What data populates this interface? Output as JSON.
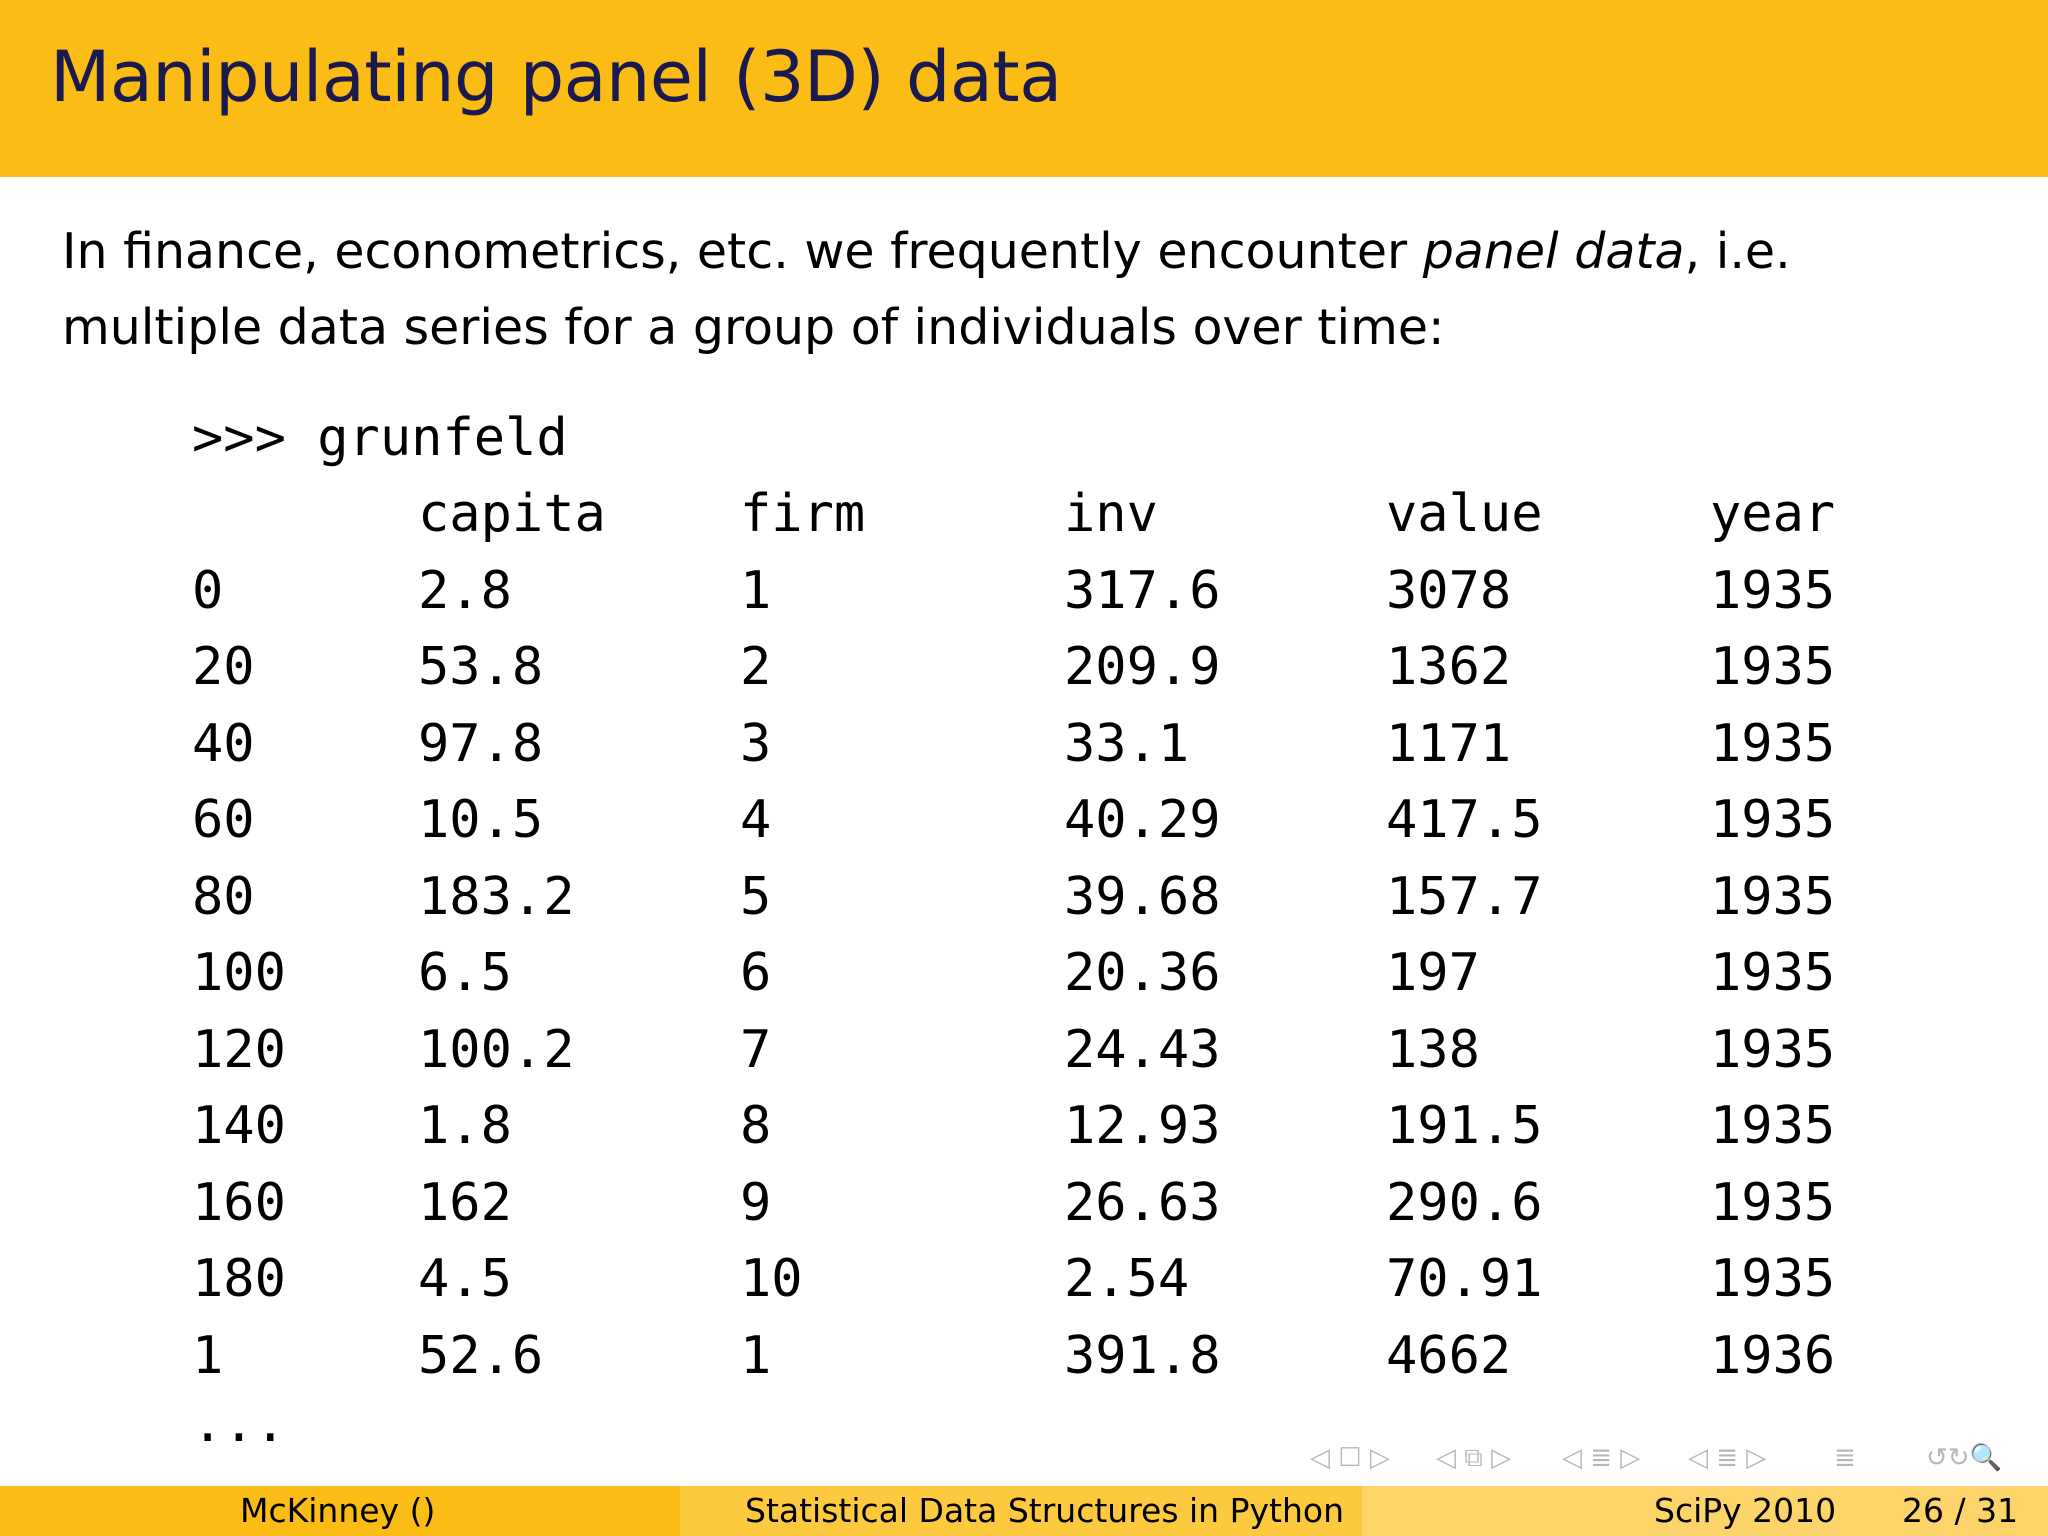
{
  "slide": {
    "title": "Manipulating panel (3D) data",
    "intro_before": "In finance, econometrics, etc.  we frequently encounter ",
    "intro_emph": "panel data",
    "intro_after": ", i.e. multiple data series for a group of individuals over time:",
    "code_prompt": ">>> grunfeld",
    "table": {
      "header": [
        "",
        "capita",
        "firm",
        "inv",
        "value",
        "year"
      ],
      "rows": [
        [
          "0",
          "2.8",
          "1",
          "317.6",
          "3078",
          "1935"
        ],
        [
          "20",
          "53.8",
          "2",
          "209.9",
          "1362",
          "1935"
        ],
        [
          "40",
          "97.8",
          "3",
          "33.1",
          "1171",
          "1935"
        ],
        [
          "60",
          "10.5",
          "4",
          "40.29",
          "417.5",
          "1935"
        ],
        [
          "80",
          "183.2",
          "5",
          "39.68",
          "157.7",
          "1935"
        ],
        [
          "100",
          "6.5",
          "6",
          "20.36",
          "197",
          "1935"
        ],
        [
          "120",
          "100.2",
          "7",
          "24.43",
          "138",
          "1935"
        ],
        [
          "140",
          "1.8",
          "8",
          "12.93",
          "191.5",
          "1935"
        ],
        [
          "160",
          "162",
          "9",
          "26.63",
          "290.6",
          "1935"
        ],
        [
          "180",
          "4.5",
          "10",
          "2.54",
          "70.91",
          "1935"
        ],
        [
          "1",
          "52.6",
          "1",
          "391.8",
          "4662",
          "1936"
        ]
      ]
    },
    "ellipsis": "..."
  },
  "navigation": {
    "frame_symbol": "◁ ☐ ▷",
    "subsection_symbol": "◁ ⧉ ▷",
    "section_symbol": "◁ ≣ ▷",
    "subsection_list_symbol": "◁ ≣ ▷",
    "align_symbol": "≣",
    "search_symbol": "↺↻🔍"
  },
  "footer": {
    "author": "McKinney  ()",
    "talk_title": "Statistical Data Structures in Python",
    "conference": "SciPy 2010",
    "page": "26 / 31"
  },
  "colors": {
    "title_bar": "#fbbc16",
    "title_text": "#1a1a4e"
  }
}
